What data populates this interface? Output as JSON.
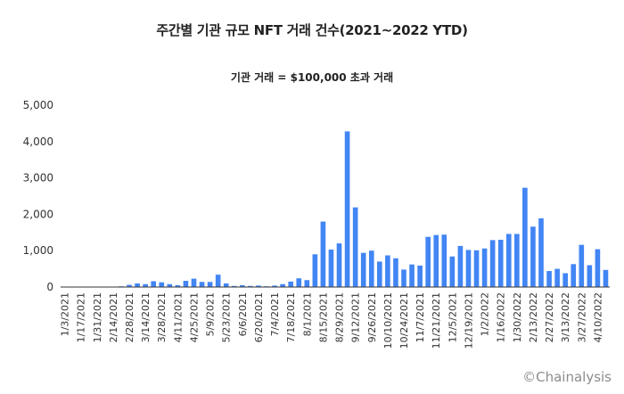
{
  "chart_data": {
    "type": "bar",
    "title": "주간별 기관 규모 NFT 거래 건수(2021~2022 YTD)",
    "subtitle": "기관 거래 = $100,000 초과 거래",
    "ylim": [
      0,
      5000
    ],
    "y_ticks": [
      "0",
      "1,000",
      "2,000",
      "3,000",
      "4,000",
      "5,000"
    ],
    "y_tick_values": [
      0,
      1000,
      2000,
      3000,
      4000,
      5000
    ],
    "x_tick_labels": [
      "1/3/2021",
      "1/17/2021",
      "1/31/2021",
      "2/14/2021",
      "2/28/2021",
      "3/14/2021",
      "3/28/2021",
      "4/11/2021",
      "4/25/2021",
      "5/9/2021",
      "5/23/2021",
      "6/6/2021",
      "6/20/2021",
      "7/4/2021",
      "7/18/2021",
      "8/1/2021",
      "8/15/2021",
      "8/29/2021",
      "9/12/2021",
      "9/26/2021",
      "10/10/2021",
      "10/24/2021",
      "11/7/2021",
      "11/21/2021",
      "12/5/2021",
      "12/19/2021",
      "1/2/2022",
      "1/16/2022",
      "1/30/2022",
      "2/13/2022",
      "2/27/2022",
      "3/13/2022",
      "3/27/2022",
      "4/10/2022"
    ],
    "color": "#4285f4",
    "values": [
      0,
      0,
      0,
      0,
      0,
      0,
      0,
      20,
      60,
      100,
      80,
      160,
      130,
      80,
      50,
      170,
      230,
      140,
      140,
      340,
      100,
      30,
      50,
      30,
      40,
      20,
      40,
      80,
      150,
      240,
      190,
      900,
      1800,
      1030,
      1200,
      4280,
      2190,
      940,
      1000,
      700,
      870,
      790,
      480,
      620,
      590,
      1380,
      1430,
      1440,
      840,
      1130,
      1020,
      1010,
      1060,
      1290,
      1300,
      1460,
      1460,
      2730,
      1660,
      1890,
      440,
      500,
      380,
      630,
      1160,
      600,
      1040,
      470
    ]
  },
  "watermark": "©Chainalysis"
}
